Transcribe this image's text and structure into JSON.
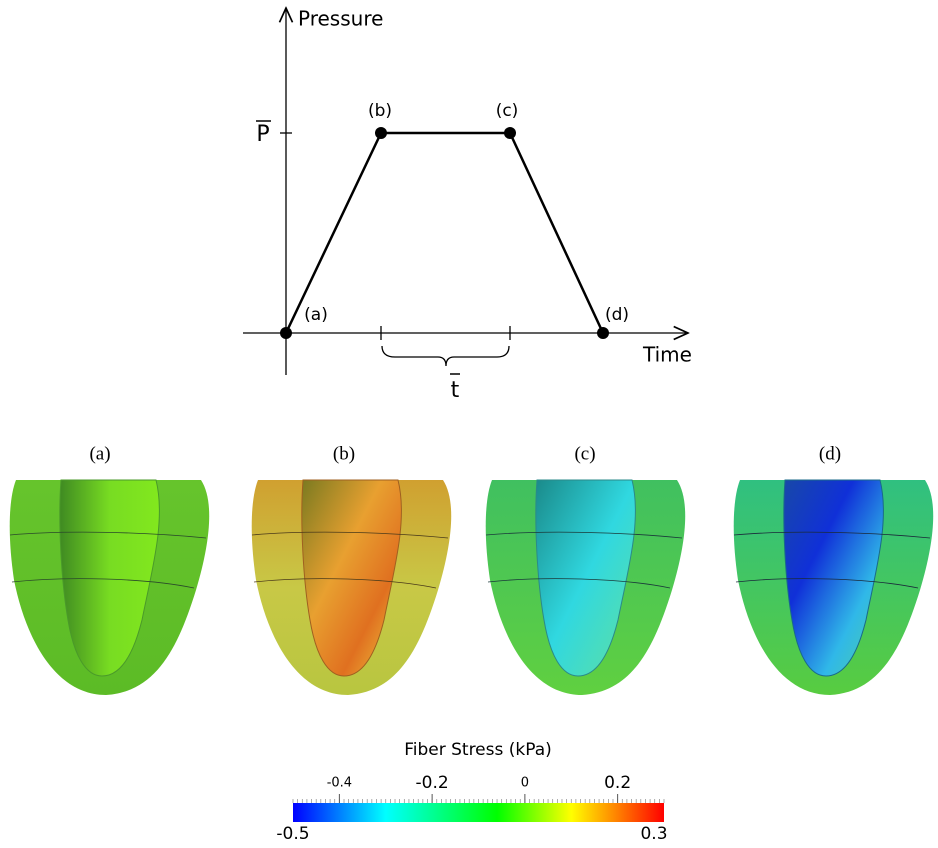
{
  "diagram": {
    "y_label": "Pressure",
    "x_label": "Time",
    "p_label": "P",
    "t_label": "t",
    "points": [
      {
        "label": "(a)"
      },
      {
        "label": "(b)"
      },
      {
        "label": "(c)"
      },
      {
        "label": "(d)"
      }
    ]
  },
  "panels": [
    {
      "label": "(a)"
    },
    {
      "label": "(b)"
    },
    {
      "label": "(c)"
    },
    {
      "label": "(d)"
    }
  ],
  "colorbar": {
    "title": "Fiber Stress (kPa)",
    "min": -0.5,
    "max": 0.3,
    "ticks": [
      -0.4,
      -0.2,
      0,
      0.2
    ]
  }
}
